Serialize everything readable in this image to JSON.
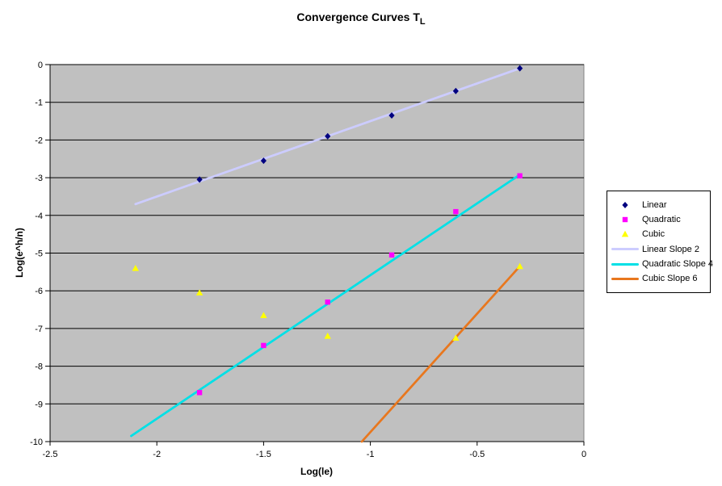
{
  "chart_data": {
    "type": "scatter",
    "title": "Convergence Curves T_L",
    "title_main": "Convergence Curves T",
    "title_sub": "L",
    "xlabel": "Log(le)",
    "ylabel": "Log(e^h/n)",
    "xlim": [
      -2.5,
      0
    ],
    "ylim": [
      -10,
      0
    ],
    "x_tick_values": [
      -2.5,
      -2,
      -1.5,
      -1,
      -0.5,
      0
    ],
    "x_tick_labels": [
      "-2.5",
      "-2",
      "-1.5",
      "-1",
      "-0.5",
      "0"
    ],
    "y_tick_values": [
      0,
      -1,
      -2,
      -3,
      -4,
      -5,
      -6,
      -7,
      -8,
      -9,
      -10
    ],
    "y_tick_labels": [
      "0",
      "-1",
      "-2",
      "-3",
      "-4",
      "-5",
      "-6",
      "-7",
      "-8",
      "-9",
      "-10"
    ],
    "grid": "horizontal",
    "legend_position": "right",
    "colors": {
      "background": "#FFFFFF",
      "plot_bg": "#C0C0C0",
      "plot_border": "#848484",
      "gridline": "#000000",
      "axis": "#000000",
      "text": "#000000"
    },
    "series": [
      {
        "name": "Linear",
        "type": "scatter",
        "marker": "diamond",
        "color": "#000080",
        "points": [
          [
            -1.8,
            -3.05
          ],
          [
            -1.5,
            -2.55
          ],
          [
            -1.2,
            -1.9
          ],
          [
            -0.9,
            -1.35
          ],
          [
            -0.6,
            -0.7
          ],
          [
            -0.3,
            -0.1
          ]
        ]
      },
      {
        "name": "Quadratic",
        "type": "scatter",
        "marker": "square",
        "color": "#FF00FF",
        "points": [
          [
            -1.8,
            -8.7
          ],
          [
            -1.5,
            -7.45
          ],
          [
            -1.2,
            -6.3
          ],
          [
            -0.9,
            -5.05
          ],
          [
            -0.6,
            -3.9
          ],
          [
            -0.3,
            -2.95
          ]
        ]
      },
      {
        "name": "Cubic",
        "type": "scatter",
        "marker": "triangle",
        "color": "#FFFF00",
        "points": [
          [
            -2.1,
            -5.4
          ],
          [
            -1.8,
            -6.05
          ],
          [
            -1.5,
            -6.65
          ],
          [
            -1.2,
            -7.2
          ],
          [
            -0.6,
            -7.25
          ],
          [
            -0.3,
            -5.35
          ]
        ]
      },
      {
        "name": "Linear Slope 2",
        "type": "line",
        "color": "#CCCCFF",
        "points": [
          [
            -2.1,
            -3.7
          ],
          [
            -0.3,
            -0.1
          ]
        ]
      },
      {
        "name": "Quadratic Slope 4",
        "type": "line",
        "color": "#00E0E6",
        "points": [
          [
            -2.12,
            -9.85
          ],
          [
            -0.3,
            -2.92
          ]
        ]
      },
      {
        "name": "Cubic Slope 6",
        "type": "line",
        "color": "#E8771E",
        "points": [
          [
            -1.04,
            -10.0
          ],
          [
            -0.3,
            -5.35
          ]
        ]
      }
    ]
  }
}
